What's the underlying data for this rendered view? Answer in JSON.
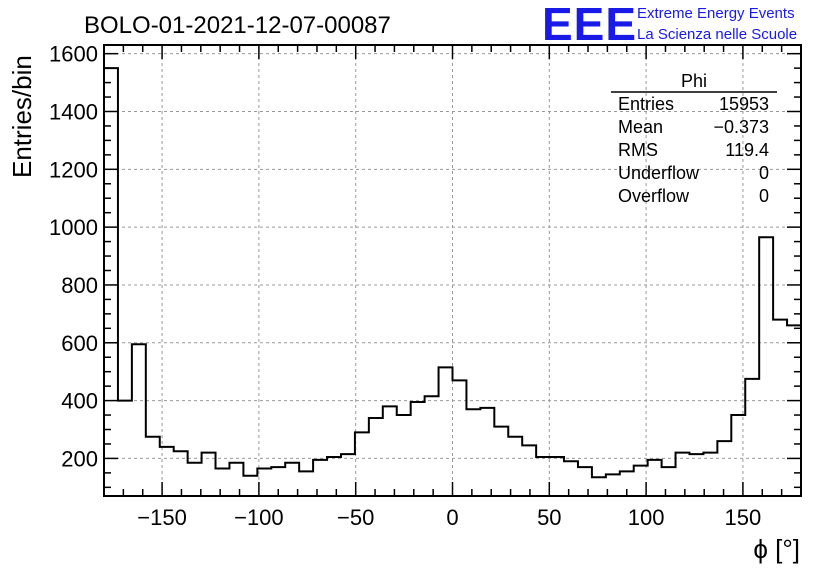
{
  "title": "BOLO-01-2021-12-07-00087",
  "logo": {
    "mark": "EEE",
    "line1": "Extreme Energy Events",
    "line2": "La Scienza nelle Scuole",
    "color": "#1a1ae6"
  },
  "stats": {
    "name": "Phi",
    "rows": [
      {
        "label": "Entries",
        "value": "15953"
      },
      {
        "label": "Mean",
        "value": "−0.373"
      },
      {
        "label": "RMS",
        "value": "119.4"
      },
      {
        "label": "Underflow",
        "value": "0"
      },
      {
        "label": "Overflow",
        "value": "0"
      }
    ]
  },
  "chart_data": {
    "type": "bar",
    "style": "step-histogram",
    "title": "BOLO-01-2021-12-07-00087",
    "xlabel": "ϕ [°]",
    "ylabel": "Entries/bin",
    "xlim": [
      -180,
      180
    ],
    "ylim": [
      70,
      1630
    ],
    "grid": true,
    "bin_width": 7.2,
    "x_ticks": [
      -150,
      -100,
      -50,
      0,
      50,
      100,
      150
    ],
    "x_tick_labels": [
      "−150",
      "−100",
      "−50",
      "0",
      "50",
      "100",
      "150"
    ],
    "y_ticks": [
      200,
      400,
      600,
      800,
      1000,
      1200,
      1400,
      1600
    ],
    "y_tick_labels": [
      "200",
      "400",
      "600",
      "800",
      "1000",
      "1200",
      "1400",
      "1600"
    ],
    "values": [
      1550,
      400,
      595,
      275,
      240,
      225,
      185,
      220,
      165,
      185,
      140,
      165,
      170,
      185,
      155,
      195,
      205,
      215,
      290,
      340,
      380,
      350,
      395,
      415,
      515,
      470,
      370,
      375,
      310,
      275,
      245,
      205,
      205,
      190,
      170,
      135,
      145,
      155,
      175,
      195,
      170,
      220,
      215,
      220,
      260,
      350,
      475,
      965,
      680,
      660
    ]
  }
}
